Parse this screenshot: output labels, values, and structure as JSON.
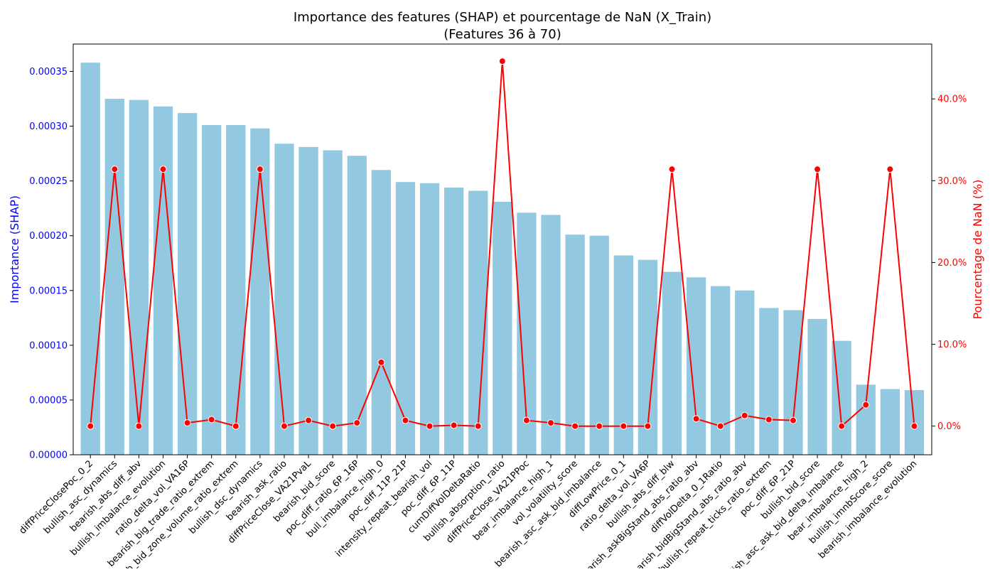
{
  "chart_data": {
    "type": "bar",
    "title": "Importance des features (SHAP) et pourcentage de NaN (X_Train)",
    "subtitle": "(Features 36 à 70)",
    "ylabel": "Importance (SHAP)",
    "y2label": "Pourcentage de NaN (%)",
    "ylim": [
      0,
      0.000375
    ],
    "y2lim": [
      -3.5,
      46.7
    ],
    "yticks": [
      "0.00000",
      "0.00005",
      "0.00010",
      "0.00015",
      "0.00020",
      "0.00025",
      "0.00030",
      "0.00035"
    ],
    "ytick_values": [
      0,
      5e-05,
      0.0001,
      0.00015,
      0.0002,
      0.00025,
      0.0003,
      0.00035
    ],
    "y2ticks": [
      "0.0%",
      "10.0%",
      "20.0%",
      "30.0%",
      "40.0%"
    ],
    "y2tick_values": [
      0,
      10,
      20,
      30,
      40
    ],
    "bar_color": "#92c9e0",
    "line_color": "#ff0000",
    "left_axis_color": "#0000ff",
    "right_axis_color": "#ff0000",
    "categories": [
      "diffPriceClosePoc_0_2",
      "bullish_asc_dynamics",
      "bearish_abs_diff_abv",
      "bullish_imbalance_evolution",
      "ratio_delta_vol_VA16P",
      "bearish_big_trade_ratio_extrem",
      "bearish_bid_zone_volume_ratio_extrem",
      "bullish_dsc_dynamics",
      "bearish_ask_ratio",
      "diffPriceClose_VA21PvaL",
      "bearish_bid_score",
      "poc_diff_ratio_6P_16P",
      "bull_imbalance_high_0",
      "poc_diff_11P_21P",
      "intensity_repeat_bearish_vol",
      "poc_diff_6P_11P",
      "cumDiffVolDeltaRatio",
      "bullish_absorption_ratio",
      "diffPriceClose_VA21PPoc",
      "bear_imbalance_high_1",
      "vol_volatility_score",
      "bearish_asc_ask_bid_imbalance",
      "diffLowPrice_0_1",
      "ratio_delta_vol_VA6P",
      "bullish_abs_diff_blw",
      "bearish_askBigStand_abs_ratio_abv",
      "diffVolDelta_0_1Ratio",
      "bearish_bidBigStand_abs_ratio_abv",
      "bullish_repeat_ticks_ratio_extrem",
      "poc_diff_6P_21P",
      "bullish_bid_score",
      "bullish_asc_ask_bid_delta_imbalance",
      "bear_imbalance_high_2",
      "bullish_imnbScore_score",
      "bearish_imbalance_evolution"
    ],
    "series": [
      {
        "name": "Importance (SHAP)",
        "type": "bar",
        "axis": "left",
        "values": [
          0.000358,
          0.000325,
          0.000324,
          0.000318,
          0.000312,
          0.000301,
          0.000301,
          0.000298,
          0.000284,
          0.000281,
          0.000278,
          0.000273,
          0.00026,
          0.000249,
          0.000248,
          0.000244,
          0.000241,
          0.000231,
          0.000221,
          0.000219,
          0.000201,
          0.0002,
          0.000182,
          0.000178,
          0.000167,
          0.000162,
          0.000154,
          0.00015,
          0.000134,
          0.000132,
          0.000124,
          0.000104,
          6.4e-05,
          6e-05,
          5.9e-05
        ]
      },
      {
        "name": "Pourcentage de NaN (%)",
        "type": "line",
        "axis": "right",
        "values": [
          0.0,
          31.4,
          0.0,
          31.4,
          0.4,
          0.8,
          0.0,
          31.4,
          0.0,
          0.7,
          0.0,
          0.4,
          7.8,
          0.7,
          0.0,
          0.1,
          0.0,
          44.6,
          0.7,
          0.4,
          0.0,
          0.0,
          0.0,
          0.0,
          31.4,
          0.9,
          0.0,
          1.3,
          0.8,
          0.7,
          31.4,
          0.0,
          2.6,
          31.4,
          0.0
        ]
      }
    ]
  }
}
